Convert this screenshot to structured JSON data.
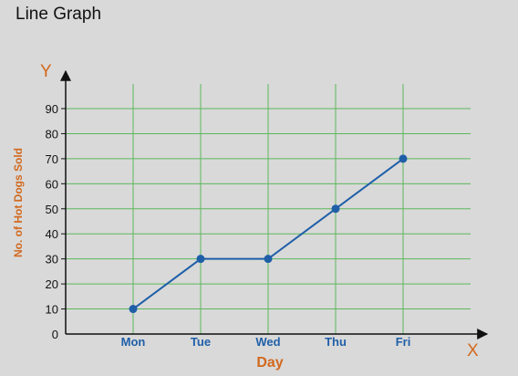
{
  "page_title": "Line Graph",
  "colors": {
    "background": "#d9d9d9",
    "grid": "#5cb85c",
    "axis": "#111111",
    "series": "#1f5fa8",
    "axis_accent": "#d2691e",
    "category_text": "#1f5fa8"
  },
  "chart_data": {
    "type": "line",
    "title": "Line Graph",
    "xlabel": "Day",
    "ylabel": "No. of Hot Dogs Sold",
    "x_axis_letter": "X",
    "y_axis_letter": "Y",
    "categories": [
      "Mon",
      "Tue",
      "Wed",
      "Thu",
      "Fri"
    ],
    "series": [
      {
        "values": [
          10,
          30,
          30,
          50,
          70
        ]
      }
    ],
    "ylim": [
      0,
      90
    ],
    "yticks": [
      0,
      10,
      20,
      30,
      40,
      50,
      60,
      70,
      80,
      90
    ],
    "grid": true,
    "legend": "none"
  }
}
